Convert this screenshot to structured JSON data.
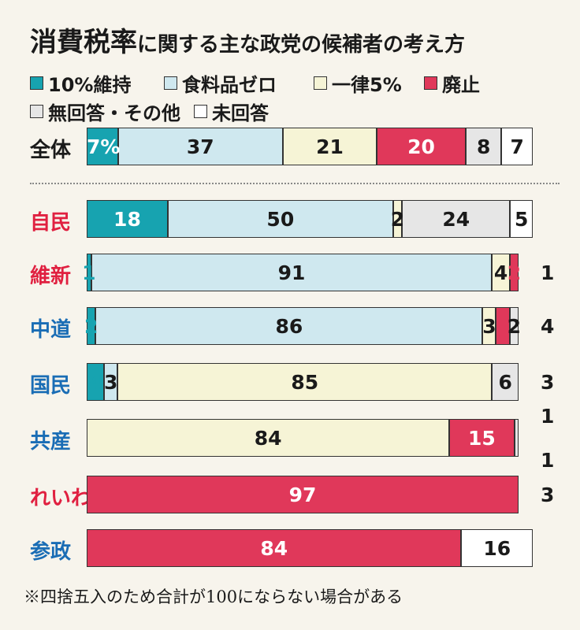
{
  "title": {
    "main": "消費税率",
    "sub": "に関する主な政党の候補者の考え方"
  },
  "colors": {
    "10%維持": "#17a3b0",
    "食料品ゼロ": "#cfe8ef",
    "一律5%": "#f6f4d6",
    "廃止": "#e0385a",
    "無回答・その他": "#e6e6e6",
    "未回答": "#ffffff",
    "label_red": "#e02040",
    "label_blue": "#1a6db5",
    "label_black": "#1a1a1a"
  },
  "legend": [
    {
      "label": "10%維持",
      "key": "10%維持"
    },
    {
      "label": "食料品ゼロ",
      "key": "食料品ゼロ"
    },
    {
      "label": "一律5%",
      "key": "一律5%"
    },
    {
      "label": "廃止",
      "key": "廃止"
    },
    {
      "label": "無回答・その他",
      "key": "無回答・その他"
    },
    {
      "label": "未回答",
      "key": "未回答"
    }
  ],
  "footnote": "※四捨五入のため合計が100にならない場合がある",
  "chart_data": {
    "type": "bar",
    "orientation": "horizontal-stacked-100",
    "title": "消費税率に関する主な政党の候補者の考え方",
    "unit": "%",
    "categories": [
      "全体",
      "自民",
      "維新",
      "中道",
      "国民",
      "共産",
      "れいわ",
      "参政"
    ],
    "series": [
      {
        "name": "10%維持",
        "values": [
          7,
          18,
          1,
          2,
          4,
          0,
          0,
          0
        ]
      },
      {
        "name": "食料品ゼロ",
        "values": [
          37,
          50,
          91,
          86,
          3,
          0,
          0,
          0
        ]
      },
      {
        "name": "一律5%",
        "values": [
          21,
          2,
          4,
          3,
          85,
          84,
          0,
          0
        ]
      },
      {
        "name": "廃止",
        "values": [
          20,
          0,
          2,
          3,
          0,
          15,
          97,
          84
        ]
      },
      {
        "name": "無回答・その他",
        "values": [
          8,
          24,
          0,
          2,
          6,
          1,
          0,
          0
        ]
      },
      {
        "name": "未回答",
        "values": [
          7,
          5,
          1,
          4,
          3,
          1,
          3,
          16
        ]
      }
    ],
    "data_labels": [
      [
        "7%",
        "37",
        "21",
        "20",
        "8",
        "7"
      ],
      [
        "18",
        "50",
        "2",
        "",
        "24",
        "5"
      ],
      [
        "1",
        "91",
        "4",
        "2",
        "",
        "1"
      ],
      [
        "2",
        "86",
        "3",
        "3",
        "2",
        "4"
      ],
      [
        "4",
        "3",
        "85",
        "",
        "6",
        "3"
      ],
      [
        "",
        "",
        "84",
        "15",
        "1",
        "1"
      ],
      [
        "",
        "",
        "",
        "97",
        "",
        "3"
      ],
      [
        "",
        "",
        "",
        "84",
        "",
        "16"
      ]
    ],
    "category_colors": [
      "label_black",
      "label_red",
      "label_red",
      "label_blue",
      "label_blue",
      "label_blue",
      "label_red",
      "label_blue"
    ]
  }
}
